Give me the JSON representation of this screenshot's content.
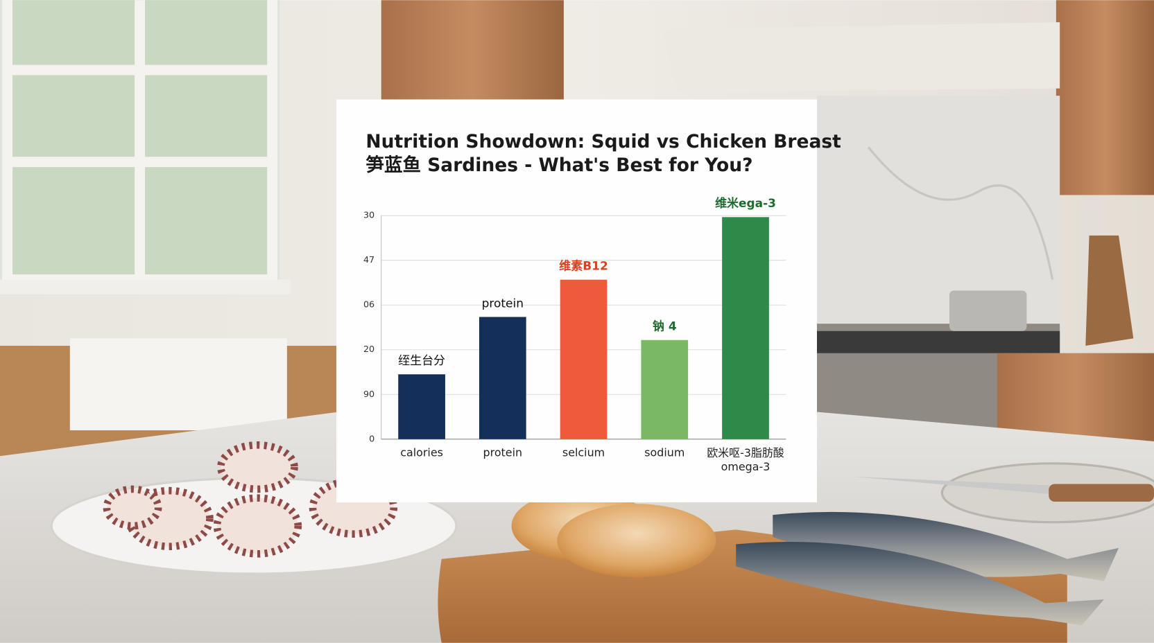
{
  "chart_data": {
    "type": "bar",
    "title": "Nutrition  Showdown: Squid vs Chicken Breast\n笋蓝鱼 Sardines - What's Best for You?",
    "categories": [
      "calories",
      "protein",
      "selcium",
      "sodium",
      "欧米呕-3脂肪酸\nomega-3"
    ],
    "values": [
      8.7,
      16.4,
      21.4,
      13.3,
      29.8
    ],
    "value_labels": [
      "绖生台分",
      "protein",
      "维素B12",
      "钠 4",
      "维米ega-3"
    ],
    "colors": [
      "#14305a",
      "#14305a",
      "#ef5a3a",
      "#7ab864",
      "#2f8a4a"
    ],
    "label_colors": [
      "#111111",
      "#111111",
      "#d8431f",
      "#1f6b30",
      "#1f6b30"
    ],
    "ylim": [
      0,
      30
    ],
    "yticks": [
      0,
      {
        "value": 6,
        "label": "90"
      },
      {
        "value": 12,
        "label": "20"
      },
      {
        "value": 18,
        "label": "06"
      },
      {
        "value": 24,
        "label": "47"
      },
      30
    ],
    "grid": true
  }
}
